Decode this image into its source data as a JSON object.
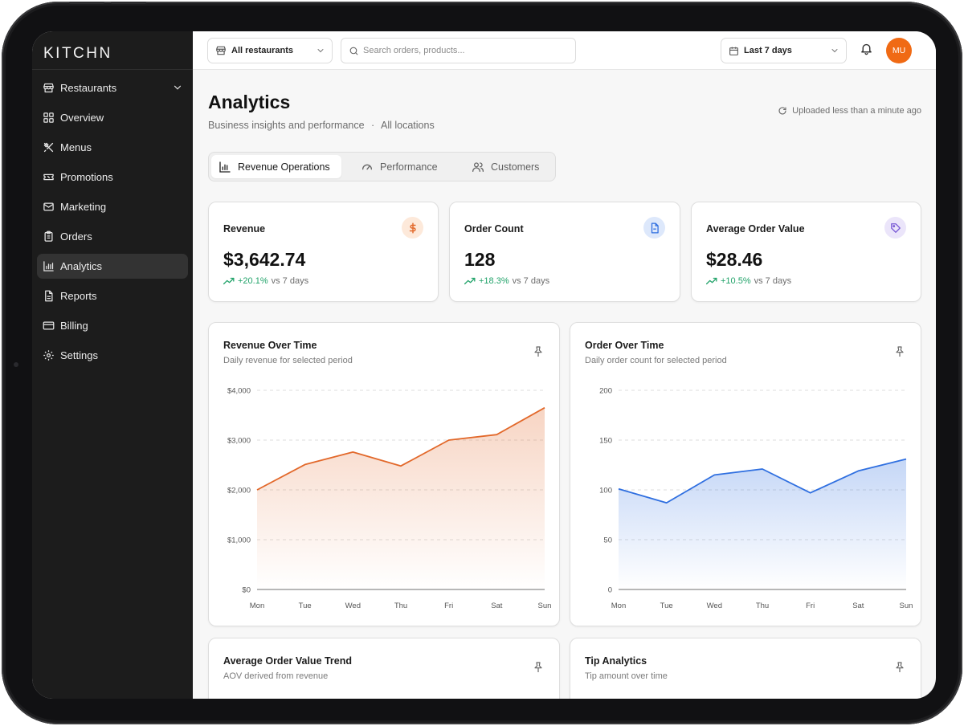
{
  "app": {
    "logo": "KITCHN"
  },
  "colors": {
    "accent_orange": "#e2682a",
    "accent_blue": "#2f6fe0",
    "positive": "#22a36a",
    "avatar_bg": "#f06a14"
  },
  "sidebar": {
    "items": [
      {
        "label": "Restaurants",
        "icon": "store-icon",
        "has_chevron": true
      },
      {
        "label": "Overview",
        "icon": "grid-icon"
      },
      {
        "label": "Menus",
        "icon": "utensils-icon"
      },
      {
        "label": "Promotions",
        "icon": "ticket-icon"
      },
      {
        "label": "Marketing",
        "icon": "mail-icon"
      },
      {
        "label": "Orders",
        "icon": "clipboard-icon"
      },
      {
        "label": "Analytics",
        "icon": "bar-chart-icon",
        "active": true
      },
      {
        "label": "Reports",
        "icon": "file-icon"
      },
      {
        "label": "Billing",
        "icon": "credit-card-icon"
      },
      {
        "label": "Settings",
        "icon": "gear-icon"
      }
    ]
  },
  "topbar": {
    "restaurant_select": "All restaurants",
    "search_placeholder": "Search orders, products...",
    "date_range": "Last 7 days",
    "avatar_initials": "MU"
  },
  "page": {
    "title": "Analytics",
    "subtitle": "Business insights and performance",
    "subtitle_separator": "·",
    "location": "All locations",
    "upload_status": "Uploaded less than a minute ago"
  },
  "tabs": [
    {
      "label": "Revenue Operations",
      "icon": "bar-chart-icon",
      "active": true
    },
    {
      "label": "Performance",
      "icon": "gauge-icon"
    },
    {
      "label": "Customers",
      "icon": "users-icon"
    }
  ],
  "kpis": [
    {
      "label": "Revenue",
      "value": "$3,642.74",
      "delta": "+20.1%",
      "comparison": "vs 7 days",
      "icon": "dollar-icon"
    },
    {
      "label": "Order Count",
      "value": "128",
      "delta": "+18.3%",
      "comparison": "vs 7 days",
      "icon": "receipt-icon"
    },
    {
      "label": "Average Order Value",
      "value": "$28.46",
      "delta": "+10.5%",
      "comparison": "vs 7 days",
      "icon": "tag-icon"
    }
  ],
  "charts": [
    {
      "title": "Revenue Over Time",
      "subtitle": "Daily revenue for selected period"
    },
    {
      "title": "Order Over Time",
      "subtitle": "Daily order count for selected period"
    },
    {
      "title": "Average Order Value Trend",
      "subtitle": "AOV derived from revenue"
    },
    {
      "title": "Tip Analytics",
      "subtitle": "Tip amount over time"
    }
  ],
  "chart_data": [
    {
      "type": "area",
      "title": "Revenue Over Time",
      "categories": [
        "Mon",
        "Tue",
        "Wed",
        "Thu",
        "Fri",
        "Sat",
        "Sun"
      ],
      "values": [
        2000,
        2510,
        2760,
        2480,
        3000,
        3110,
        3650
      ],
      "yticks": [
        "$0",
        "$1,000",
        "$2,000",
        "$3,000",
        "$4,000"
      ],
      "ylim": [
        0,
        4000
      ],
      "color": "#e2682a",
      "grid": true
    },
    {
      "type": "area",
      "title": "Order Over Time",
      "categories": [
        "Mon",
        "Tue",
        "Wed",
        "Thu",
        "Fri",
        "Sat",
        "Sun"
      ],
      "values": [
        101,
        87,
        115,
        121,
        97,
        119,
        131
      ],
      "yticks": [
        "0",
        "50",
        "100",
        "150",
        "200"
      ],
      "ylim": [
        0,
        200
      ],
      "color": "#2f6fe0",
      "grid": true
    }
  ]
}
